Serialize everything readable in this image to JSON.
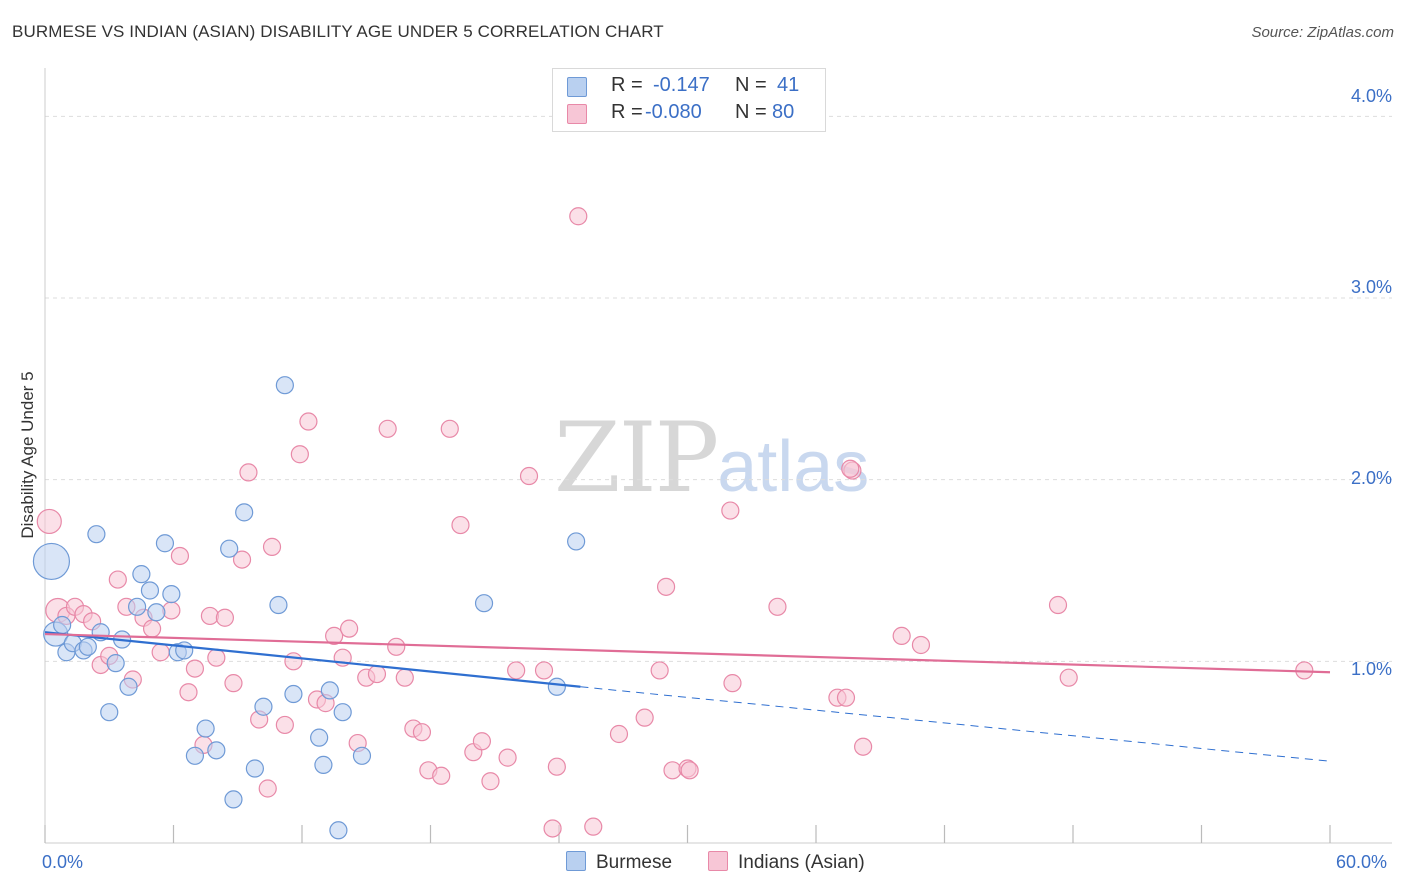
{
  "header": {
    "title": "BURMESE VS INDIAN (ASIAN) DISABILITY AGE UNDER 5 CORRELATION CHART",
    "source": "Source: ZipAtlas.com"
  },
  "watermark": {
    "zip": "ZIP",
    "atlas": "atlas"
  },
  "legend": {
    "rows": [
      {
        "r_label": "R =",
        "r_value": "-0.147",
        "n_label": "N =",
        "n_value": "41"
      },
      {
        "r_label": "R =",
        "r_value": "-0.080",
        "n_label": "N =",
        "n_value": "80"
      }
    ],
    "bottom": [
      "Burmese",
      "Indians (Asian)"
    ]
  },
  "colors": {
    "burmese_fill": "#b9d0f0",
    "burmese_stroke": "#6f9ad6",
    "burmese_line": "#2f6fd0",
    "indian_fill": "#f7c6d6",
    "indian_stroke": "#e889a8",
    "indian_line": "#e06d96",
    "axis_text": "#3b6fc6",
    "grid": "#dddddd"
  },
  "chart_data": {
    "type": "scatter",
    "title": "BURMESE VS INDIAN (ASIAN) DISABILITY AGE UNDER 5 CORRELATION CHART",
    "xlabel": "",
    "ylabel": "Disability Age Under 5",
    "xlim": [
      0,
      60
    ],
    "ylim": [
      0,
      4.2
    ],
    "x_tick_labels": [
      "0.0%",
      "60.0%"
    ],
    "y_ticks": [
      1.0,
      2.0,
      3.0,
      4.0
    ],
    "y_tick_labels": [
      "1.0%",
      "2.0%",
      "3.0%",
      "4.0%"
    ],
    "series": [
      {
        "name": "Burmese",
        "R": -0.147,
        "N": 41,
        "trend": {
          "x0": 0,
          "y0": 1.16,
          "x1": 25,
          "y1": 0.86,
          "dashed_to_x": 60,
          "dashed_to_y": 0.45
        },
        "points": [
          {
            "x": 0.3,
            "y": 1.55,
            "s": 3
          },
          {
            "x": 0.5,
            "y": 1.15,
            "s": 2
          },
          {
            "x": 0.8,
            "y": 1.2,
            "s": 1
          },
          {
            "x": 1.0,
            "y": 1.05,
            "s": 1
          },
          {
            "x": 1.3,
            "y": 1.1,
            "s": 1
          },
          {
            "x": 1.8,
            "y": 1.06,
            "s": 1
          },
          {
            "x": 2.0,
            "y": 1.08,
            "s": 1
          },
          {
            "x": 2.4,
            "y": 1.7,
            "s": 1
          },
          {
            "x": 2.6,
            "y": 1.16,
            "s": 1
          },
          {
            "x": 3.0,
            "y": 0.72,
            "s": 1
          },
          {
            "x": 3.3,
            "y": 0.99,
            "s": 1
          },
          {
            "x": 3.6,
            "y": 1.12,
            "s": 1
          },
          {
            "x": 3.9,
            "y": 0.86,
            "s": 1
          },
          {
            "x": 4.3,
            "y": 1.3,
            "s": 1
          },
          {
            "x": 4.5,
            "y": 1.48,
            "s": 1
          },
          {
            "x": 4.9,
            "y": 1.39,
            "s": 1
          },
          {
            "x": 5.2,
            "y": 1.27,
            "s": 1
          },
          {
            "x": 5.6,
            "y": 1.65,
            "s": 1
          },
          {
            "x": 5.9,
            "y": 1.37,
            "s": 1
          },
          {
            "x": 6.2,
            "y": 1.05,
            "s": 1
          },
          {
            "x": 6.5,
            "y": 1.06,
            "s": 1
          },
          {
            "x": 7.0,
            "y": 0.48,
            "s": 1
          },
          {
            "x": 7.5,
            "y": 0.63,
            "s": 1
          },
          {
            "x": 8.0,
            "y": 0.51,
            "s": 1
          },
          {
            "x": 8.6,
            "y": 1.62,
            "s": 1
          },
          {
            "x": 8.8,
            "y": 0.24,
            "s": 1
          },
          {
            "x": 9.3,
            "y": 1.82,
            "s": 1
          },
          {
            "x": 9.8,
            "y": 0.41,
            "s": 1
          },
          {
            "x": 10.2,
            "y": 0.75,
            "s": 1
          },
          {
            "x": 10.9,
            "y": 1.31,
            "s": 1
          },
          {
            "x": 11.2,
            "y": 2.52,
            "s": 1
          },
          {
            "x": 11.6,
            "y": 0.82,
            "s": 1
          },
          {
            "x": 12.8,
            "y": 0.58,
            "s": 1
          },
          {
            "x": 13.0,
            "y": 0.43,
            "s": 1
          },
          {
            "x": 13.3,
            "y": 0.84,
            "s": 1
          },
          {
            "x": 13.7,
            "y": 0.07,
            "s": 1
          },
          {
            "x": 13.9,
            "y": 0.72,
            "s": 1
          },
          {
            "x": 14.8,
            "y": 0.48,
            "s": 1
          },
          {
            "x": 20.5,
            "y": 1.32,
            "s": 1
          },
          {
            "x": 23.9,
            "y": 0.86,
            "s": 1
          },
          {
            "x": 24.8,
            "y": 1.66,
            "s": 1
          }
        ]
      },
      {
        "name": "Indians (Asian)",
        "R": -0.08,
        "N": 80,
        "trend": {
          "x0": 0,
          "y0": 1.15,
          "x1": 60,
          "y1": 0.94
        },
        "points": [
          {
            "x": 0.2,
            "y": 1.77,
            "s": 2
          },
          {
            "x": 0.6,
            "y": 1.28,
            "s": 2
          },
          {
            "x": 1.0,
            "y": 1.25,
            "s": 1
          },
          {
            "x": 1.4,
            "y": 1.3,
            "s": 1
          },
          {
            "x": 1.8,
            "y": 1.26,
            "s": 1
          },
          {
            "x": 2.2,
            "y": 1.22,
            "s": 1
          },
          {
            "x": 2.6,
            "y": 0.98,
            "s": 1
          },
          {
            "x": 3.0,
            "y": 1.03,
            "s": 1
          },
          {
            "x": 3.4,
            "y": 1.45,
            "s": 1
          },
          {
            "x": 3.8,
            "y": 1.3,
            "s": 1
          },
          {
            "x": 4.1,
            "y": 0.9,
            "s": 1
          },
          {
            "x": 4.6,
            "y": 1.24,
            "s": 1
          },
          {
            "x": 5.0,
            "y": 1.18,
            "s": 1
          },
          {
            "x": 5.4,
            "y": 1.05,
            "s": 1
          },
          {
            "x": 5.9,
            "y": 1.28,
            "s": 1
          },
          {
            "x": 6.3,
            "y": 1.58,
            "s": 1
          },
          {
            "x": 6.7,
            "y": 0.83,
            "s": 1
          },
          {
            "x": 7.0,
            "y": 0.96,
            "s": 1
          },
          {
            "x": 7.4,
            "y": 0.54,
            "s": 1
          },
          {
            "x": 7.7,
            "y": 1.25,
            "s": 1
          },
          {
            "x": 8.0,
            "y": 1.02,
            "s": 1
          },
          {
            "x": 8.4,
            "y": 1.24,
            "s": 1
          },
          {
            "x": 8.8,
            "y": 0.88,
            "s": 1
          },
          {
            "x": 9.2,
            "y": 1.56,
            "s": 1
          },
          {
            "x": 9.5,
            "y": 2.04,
            "s": 1
          },
          {
            "x": 10.0,
            "y": 0.68,
            "s": 1
          },
          {
            "x": 10.4,
            "y": 0.3,
            "s": 1
          },
          {
            "x": 10.6,
            "y": 1.63,
            "s": 1
          },
          {
            "x": 11.2,
            "y": 0.65,
            "s": 1
          },
          {
            "x": 11.6,
            "y": 1.0,
            "s": 1
          },
          {
            "x": 11.9,
            "y": 2.14,
            "s": 1
          },
          {
            "x": 12.3,
            "y": 2.32,
            "s": 1
          },
          {
            "x": 12.7,
            "y": 0.79,
            "s": 1
          },
          {
            "x": 13.1,
            "y": 0.77,
            "s": 1
          },
          {
            "x": 13.5,
            "y": 1.14,
            "s": 1
          },
          {
            "x": 13.9,
            "y": 1.02,
            "s": 1
          },
          {
            "x": 14.2,
            "y": 1.18,
            "s": 1
          },
          {
            "x": 14.6,
            "y": 0.55,
            "s": 1
          },
          {
            "x": 15.0,
            "y": 0.91,
            "s": 1
          },
          {
            "x": 15.5,
            "y": 0.93,
            "s": 1
          },
          {
            "x": 16.0,
            "y": 2.28,
            "s": 1
          },
          {
            "x": 16.4,
            "y": 1.08,
            "s": 1
          },
          {
            "x": 16.8,
            "y": 0.91,
            "s": 1
          },
          {
            "x": 17.2,
            "y": 0.63,
            "s": 1
          },
          {
            "x": 17.6,
            "y": 0.61,
            "s": 1
          },
          {
            "x": 17.9,
            "y": 0.4,
            "s": 1
          },
          {
            "x": 18.5,
            "y": 0.37,
            "s": 1
          },
          {
            "x": 18.9,
            "y": 2.28,
            "s": 1
          },
          {
            "x": 19.4,
            "y": 1.75,
            "s": 1
          },
          {
            "x": 20.0,
            "y": 0.5,
            "s": 1
          },
          {
            "x": 20.4,
            "y": 0.56,
            "s": 1
          },
          {
            "x": 20.8,
            "y": 0.34,
            "s": 1
          },
          {
            "x": 21.6,
            "y": 0.47,
            "s": 1
          },
          {
            "x": 22.0,
            "y": 0.95,
            "s": 1
          },
          {
            "x": 22.6,
            "y": 2.02,
            "s": 1
          },
          {
            "x": 23.3,
            "y": 0.95,
            "s": 1
          },
          {
            "x": 23.7,
            "y": 0.08,
            "s": 1
          },
          {
            "x": 23.9,
            "y": 0.42,
            "s": 1
          },
          {
            "x": 24.9,
            "y": 3.45,
            "s": 1
          },
          {
            "x": 25.6,
            "y": 0.09,
            "s": 1
          },
          {
            "x": 26.8,
            "y": 0.6,
            "s": 1
          },
          {
            "x": 28.0,
            "y": 0.69,
            "s": 1
          },
          {
            "x": 28.7,
            "y": 0.95,
            "s": 1
          },
          {
            "x": 29.0,
            "y": 1.41,
            "s": 1
          },
          {
            "x": 29.3,
            "y": 0.4,
            "s": 1
          },
          {
            "x": 30.0,
            "y": 0.41,
            "s": 1
          },
          {
            "x": 32.0,
            "y": 1.83,
            "s": 1
          },
          {
            "x": 32.1,
            "y": 0.88,
            "s": 1
          },
          {
            "x": 34.2,
            "y": 1.3,
            "s": 1
          },
          {
            "x": 37.0,
            "y": 0.8,
            "s": 1
          },
          {
            "x": 37.4,
            "y": 0.8,
            "s": 1
          },
          {
            "x": 37.7,
            "y": 2.05,
            "s": 1
          },
          {
            "x": 38.2,
            "y": 0.53,
            "s": 1
          },
          {
            "x": 40.0,
            "y": 1.14,
            "s": 1
          },
          {
            "x": 40.9,
            "y": 1.09,
            "s": 1
          },
          {
            "x": 47.3,
            "y": 1.31,
            "s": 1
          },
          {
            "x": 47.8,
            "y": 0.91,
            "s": 1
          },
          {
            "x": 58.8,
            "y": 0.95,
            "s": 1
          },
          {
            "x": 37.6,
            "y": 2.06,
            "s": 1
          },
          {
            "x": 30.1,
            "y": 0.4,
            "s": 1
          }
        ]
      }
    ]
  }
}
